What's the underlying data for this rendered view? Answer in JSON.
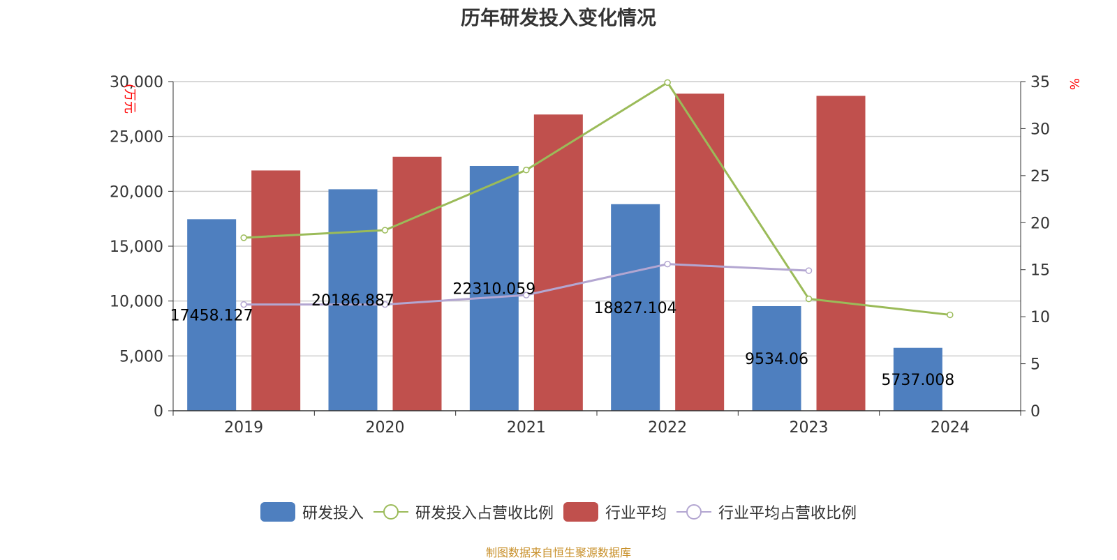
{
  "chart_data": {
    "type": "bar",
    "title": "历年研发投入变化情况",
    "categories": [
      "2019",
      "2020",
      "2021",
      "2022",
      "2023",
      "2024"
    ],
    "y_left": {
      "label": "(万元",
      "min": 0,
      "max": 30000,
      "ticks": [
        "0",
        "5,000",
        "10,000",
        "15,000",
        "20,000",
        "25,000",
        "30,000"
      ]
    },
    "y_right": {
      "label": "%",
      "min": 0,
      "max": 35,
      "ticks": [
        "0",
        "5",
        "10",
        "15",
        "20",
        "25",
        "30",
        "35"
      ]
    },
    "series": [
      {
        "name": "研发投入",
        "kind": "bar",
        "axis": "left",
        "color": "#4e7fbf",
        "values": [
          17458.127,
          20186.887,
          22310.059,
          18827.104,
          9534.06,
          5737.008
        ],
        "labels": [
          "17458.127",
          "20186.887",
          "22310.059",
          "18827.104",
          "9534.06",
          "5737.008"
        ]
      },
      {
        "name": "研发投入占营收比例",
        "kind": "line",
        "axis": "right",
        "color": "#9bbb59",
        "values": [
          18.4,
          19.2,
          25.6,
          34.9,
          11.9,
          10.2
        ]
      },
      {
        "name": "行业平均",
        "kind": "bar",
        "axis": "left",
        "color": "#c0504d",
        "values": [
          21900,
          23150,
          27000,
          28900,
          28700,
          null
        ]
      },
      {
        "name": "行业平均占营收比例",
        "kind": "line",
        "axis": "right",
        "color": "#b3a6d1",
        "values": [
          11.3,
          11.3,
          12.3,
          15.6,
          14.9,
          null
        ]
      }
    ],
    "grid": true,
    "legend_position": "bottom"
  },
  "footer": {
    "source": "制图数据来自恒生聚源数据库"
  },
  "colors": {
    "axis_label": "#ff0000",
    "text": "#333333",
    "grid": "#cccccc"
  }
}
